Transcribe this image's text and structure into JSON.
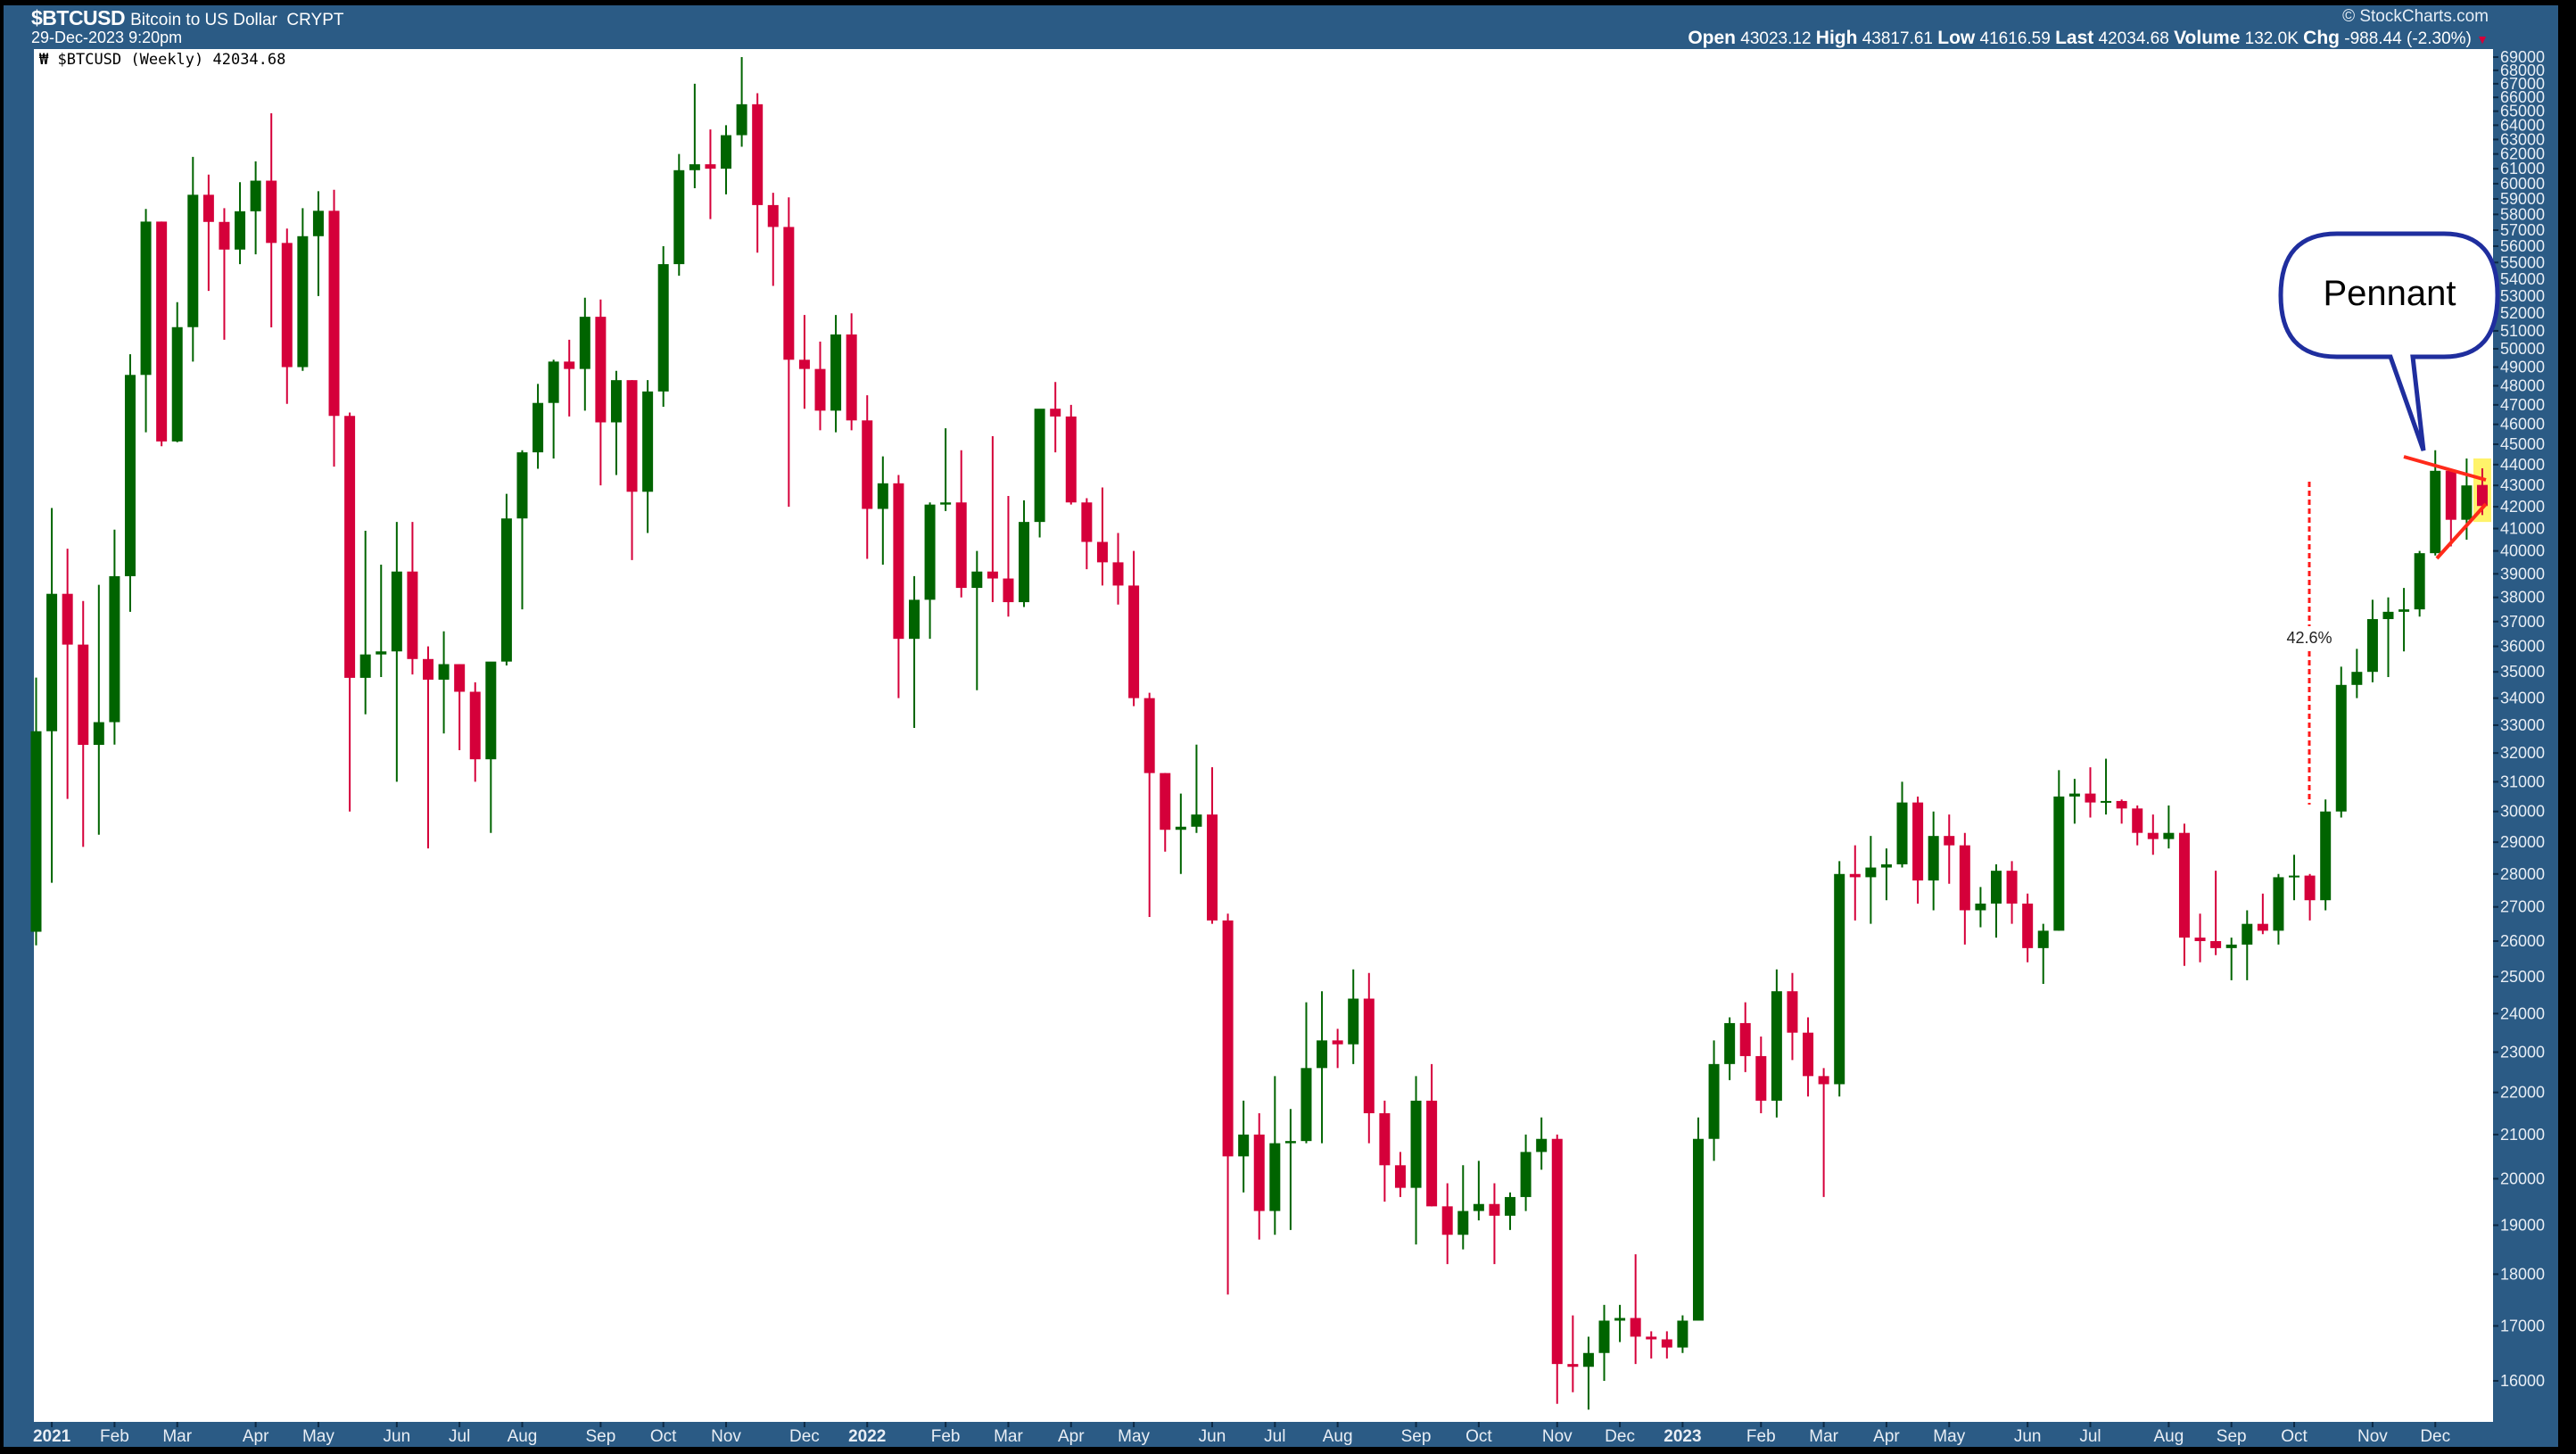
{
  "header": {
    "symbol": "$BTCUSD",
    "description": "Bitcoin to US Dollar",
    "exchange": "CRYPT",
    "datetime": "29-Dec-2023 9:20pm",
    "copyright": "© StockCharts.com",
    "open_label": "Open",
    "open": "43023.12",
    "high_label": "High",
    "high": "43817.61",
    "low_label": "Low",
    "low": "41616.59",
    "last_label": "Last",
    "last": "42034.68",
    "volume_label": "Volume",
    "volume": "132.0K",
    "chg_label": "Chg",
    "chg": "-988.44 (-2.30%)",
    "chg_direction_icon": "down-triangle-icon"
  },
  "legend": {
    "icon": "candlestick-icon",
    "text": "$BTCUSD (Weekly) 42034.68"
  },
  "colors": {
    "up": "#006400",
    "down": "#d5003a",
    "panel": "#2b5b85",
    "callout": "#1f2e9e",
    "trendline": "#ff2a1a",
    "highlight": "#fff36a"
  },
  "annotations": {
    "callout": "Pennant",
    "measure": "42.6%"
  },
  "chart_data": {
    "type": "candlestick",
    "title": "$BTCUSD (Weekly)",
    "y_scale": "log",
    "ylim": [
      16000,
      69000
    ],
    "y_ticks": [
      16000,
      17000,
      18000,
      19000,
      20000,
      21000,
      22000,
      23000,
      24000,
      25000,
      26000,
      27000,
      28000,
      29000,
      30000,
      31000,
      32000,
      33000,
      34000,
      35000,
      36000,
      37000,
      38000,
      39000,
      40000,
      41000,
      42000,
      43000,
      44000,
      45000,
      46000,
      47000,
      48000,
      49000,
      50000,
      51000,
      52000,
      53000,
      54000,
      55000,
      56000,
      57000,
      58000,
      59000,
      60000,
      61000,
      62000,
      63000,
      64000,
      65000,
      66000,
      67000,
      68000,
      69000
    ],
    "y_axis_position": "right",
    "grid": false,
    "x_ticks": [
      {
        "label": "2021",
        "date": "2021-01-04",
        "bold": true
      },
      {
        "label": "Feb",
        "date": "2021-02-01"
      },
      {
        "label": "Mar",
        "date": "2021-03-01"
      },
      {
        "label": "Apr",
        "date": "2021-04-05"
      },
      {
        "label": "May",
        "date": "2021-05-03"
      },
      {
        "label": "Jun",
        "date": "2021-06-07"
      },
      {
        "label": "Jul",
        "date": "2021-07-05"
      },
      {
        "label": "Aug",
        "date": "2021-08-02"
      },
      {
        "label": "Sep",
        "date": "2021-09-06"
      },
      {
        "label": "Oct",
        "date": "2021-10-04"
      },
      {
        "label": "Nov",
        "date": "2021-11-01"
      },
      {
        "label": "Dec",
        "date": "2021-12-06"
      },
      {
        "label": "2022",
        "date": "2022-01-03",
        "bold": true
      },
      {
        "label": "Feb",
        "date": "2022-02-07"
      },
      {
        "label": "Mar",
        "date": "2022-03-07"
      },
      {
        "label": "Apr",
        "date": "2022-04-04"
      },
      {
        "label": "May",
        "date": "2022-05-02"
      },
      {
        "label": "Jun",
        "date": "2022-06-06"
      },
      {
        "label": "Jul",
        "date": "2022-07-04"
      },
      {
        "label": "Aug",
        "date": "2022-08-01"
      },
      {
        "label": "Sep",
        "date": "2022-09-05"
      },
      {
        "label": "Oct",
        "date": "2022-10-03"
      },
      {
        "label": "Nov",
        "date": "2022-11-07"
      },
      {
        "label": "Dec",
        "date": "2022-12-05"
      },
      {
        "label": "2023",
        "date": "2023-01-02",
        "bold": true
      },
      {
        "label": "Feb",
        "date": "2023-02-06"
      },
      {
        "label": "Mar",
        "date": "2023-03-06"
      },
      {
        "label": "Apr",
        "date": "2023-04-03"
      },
      {
        "label": "May",
        "date": "2023-05-01"
      },
      {
        "label": "Jun",
        "date": "2023-06-05"
      },
      {
        "label": "Jul",
        "date": "2023-07-03"
      },
      {
        "label": "Aug",
        "date": "2023-08-07"
      },
      {
        "label": "Sep",
        "date": "2023-09-04"
      },
      {
        "label": "Oct",
        "date": "2023-10-02"
      },
      {
        "label": "Nov",
        "date": "2023-11-06"
      },
      {
        "label": "Dec",
        "date": "2023-12-04"
      }
    ],
    "columns": [
      "week",
      "open",
      "high",
      "low",
      "close"
    ],
    "candles": [
      [
        "2020-12-28",
        26270,
        34780,
        25880,
        32780
      ],
      [
        "2021-01-04",
        32780,
        41940,
        27730,
        38150
      ],
      [
        "2021-01-11",
        38150,
        40100,
        30420,
        36070
      ],
      [
        "2021-01-18",
        36070,
        37850,
        28850,
        32290
      ],
      [
        "2021-01-25",
        32290,
        38530,
        29240,
        33110
      ],
      [
        "2021-02-01",
        33110,
        40950,
        32300,
        38900
      ],
      [
        "2021-02-08",
        38900,
        49700,
        37400,
        48580
      ],
      [
        "2021-02-15",
        48580,
        58350,
        45600,
        57540
      ],
      [
        "2021-02-22",
        57540,
        57540,
        44900,
        45140
      ],
      [
        "2021-03-01",
        45140,
        52640,
        45100,
        51210
      ],
      [
        "2021-03-08",
        51210,
        61800,
        49300,
        59270
      ],
      [
        "2021-03-15",
        59270,
        60600,
        53300,
        57520
      ],
      [
        "2021-03-22",
        57520,
        58400,
        50500,
        55790
      ],
      [
        "2021-03-29",
        55790,
        60100,
        54900,
        58200
      ],
      [
        "2021-04-05",
        58200,
        61500,
        55500,
        60200
      ],
      [
        "2021-04-12",
        60200,
        64850,
        51200,
        56200
      ],
      [
        "2021-04-19",
        56200,
        57100,
        47050,
        49000
      ],
      [
        "2021-04-26",
        49000,
        58400,
        48800,
        56620
      ],
      [
        "2021-05-03",
        56620,
        59500,
        53000,
        58230
      ],
      [
        "2021-05-10",
        58230,
        59600,
        43900,
        46430
      ],
      [
        "2021-05-17",
        46430,
        46600,
        30000,
        34770
      ],
      [
        "2021-05-24",
        34770,
        40900,
        33400,
        35680
      ],
      [
        "2021-05-31",
        35680,
        39400,
        34800,
        35800
      ],
      [
        "2021-06-07",
        35800,
        41300,
        31000,
        39100
      ],
      [
        "2021-06-14",
        39100,
        41300,
        34900,
        35500
      ],
      [
        "2021-06-21",
        35500,
        36000,
        28800,
        34700
      ],
      [
        "2021-06-28",
        34700,
        36600,
        32700,
        35300
      ],
      [
        "2021-07-05",
        35300,
        35300,
        32100,
        34240
      ],
      [
        "2021-07-12",
        34240,
        34600,
        31000,
        31780
      ],
      [
        "2021-07-19",
        31780,
        35000,
        29300,
        35400
      ],
      [
        "2021-07-26",
        35400,
        42600,
        35250,
        41460
      ],
      [
        "2021-08-02",
        41460,
        44700,
        37500,
        44600
      ],
      [
        "2021-08-09",
        44600,
        48100,
        43800,
        47100
      ],
      [
        "2021-08-16",
        47100,
        49400,
        44300,
        49300
      ],
      [
        "2021-08-23",
        49300,
        50500,
        46400,
        48900
      ],
      [
        "2021-08-30",
        48900,
        52900,
        46700,
        51800
      ],
      [
        "2021-09-06",
        51800,
        52800,
        43000,
        46100
      ],
      [
        "2021-09-13",
        46100,
        48800,
        43500,
        48300
      ],
      [
        "2021-09-20",
        48300,
        48300,
        39600,
        42700
      ],
      [
        "2021-09-27",
        42700,
        48300,
        40800,
        47700
      ],
      [
        "2021-10-04",
        47700,
        56000,
        46900,
        54900
      ],
      [
        "2021-10-11",
        54900,
        62000,
        54200,
        60900
      ],
      [
        "2021-10-18",
        60900,
        67000,
        59700,
        61300
      ],
      [
        "2021-10-25",
        61300,
        63700,
        57700,
        61000
      ],
      [
        "2021-11-01",
        61000,
        64000,
        59300,
        63300
      ],
      [
        "2021-11-08",
        63300,
        69000,
        62500,
        65500
      ],
      [
        "2021-11-15",
        65500,
        66300,
        55600,
        58600
      ],
      [
        "2021-11-22",
        58600,
        59400,
        53600,
        57200
      ],
      [
        "2021-11-29",
        57200,
        59100,
        42000,
        49400
      ],
      [
        "2021-12-06",
        49400,
        51900,
        46800,
        48900
      ],
      [
        "2021-12-13",
        48900,
        50400,
        45700,
        46700
      ],
      [
        "2021-12-20",
        46700,
        51900,
        45600,
        50800
      ],
      [
        "2021-12-27",
        50800,
        52000,
        45700,
        46200
      ],
      [
        "2022-01-03",
        46200,
        47500,
        39650,
        41900
      ],
      [
        "2022-01-10",
        41900,
        44400,
        39400,
        43100
      ],
      [
        "2022-01-17",
        43100,
        43500,
        34000,
        36300
      ],
      [
        "2022-01-24",
        36300,
        38900,
        32900,
        37900
      ],
      [
        "2022-01-31",
        37900,
        42200,
        36300,
        42100
      ],
      [
        "2022-02-07",
        42100,
        45800,
        41800,
        42200
      ],
      [
        "2022-02-14",
        42200,
        44700,
        38000,
        38400
      ],
      [
        "2022-02-21",
        38400,
        40000,
        34300,
        39100
      ],
      [
        "2022-02-28",
        39100,
        45400,
        37800,
        38800
      ],
      [
        "2022-03-07",
        38800,
        42500,
        37200,
        37800
      ],
      [
        "2022-03-14",
        37800,
        42300,
        37600,
        41300
      ],
      [
        "2022-03-21",
        41300,
        46500,
        40600,
        46800
      ],
      [
        "2022-03-28",
        46800,
        48200,
        44600,
        46400
      ],
      [
        "2022-04-04",
        46400,
        47000,
        42100,
        42200
      ],
      [
        "2022-04-11",
        42200,
        42400,
        39200,
        40400
      ],
      [
        "2022-04-18",
        40400,
        42900,
        38500,
        39500
      ],
      [
        "2022-04-25",
        39500,
        40800,
        37700,
        38500
      ],
      [
        "2022-05-02",
        38500,
        40000,
        33700,
        34000
      ],
      [
        "2022-05-09",
        34000,
        34200,
        26700,
        31300
      ],
      [
        "2022-05-16",
        31300,
        31300,
        28700,
        29400
      ],
      [
        "2022-05-23",
        29400,
        30600,
        28000,
        29500
      ],
      [
        "2022-05-30",
        29500,
        32300,
        29300,
        29900
      ],
      [
        "2022-06-06",
        29900,
        31500,
        26500,
        26600
      ],
      [
        "2022-06-13",
        26600,
        26800,
        17600,
        20500
      ],
      [
        "2022-06-20",
        20500,
        21800,
        19700,
        21000
      ],
      [
        "2022-06-27",
        21000,
        21500,
        18700,
        19300
      ],
      [
        "2022-07-04",
        19300,
        22400,
        18800,
        20800
      ],
      [
        "2022-07-11",
        20800,
        21600,
        18900,
        20850
      ],
      [
        "2022-07-18",
        20850,
        24300,
        20800,
        22600
      ],
      [
        "2022-07-25",
        22600,
        24600,
        20800,
        23300
      ],
      [
        "2022-08-01",
        23300,
        23600,
        22600,
        23200
      ],
      [
        "2022-08-08",
        23200,
        25200,
        22700,
        24400
      ],
      [
        "2022-08-15",
        24400,
        25100,
        20800,
        21500
      ],
      [
        "2022-08-22",
        21500,
        21800,
        19500,
        20300
      ],
      [
        "2022-08-29",
        20300,
        20600,
        19600,
        19800
      ],
      [
        "2022-09-05",
        19800,
        22400,
        18600,
        21800
      ],
      [
        "2022-09-12",
        21800,
        22700,
        19400,
        19400
      ],
      [
        "2022-09-19",
        19400,
        19900,
        18200,
        18800
      ],
      [
        "2022-09-26",
        18800,
        20300,
        18500,
        19300
      ],
      [
        "2022-10-03",
        19300,
        20400,
        19100,
        19450
      ],
      [
        "2022-10-10",
        19450,
        19900,
        18200,
        19200
      ],
      [
        "2022-10-17",
        19200,
        19700,
        18900,
        19600
      ],
      [
        "2022-10-24",
        19600,
        21000,
        19300,
        20600
      ],
      [
        "2022-10-31",
        20600,
        21400,
        20200,
        20900
      ],
      [
        "2022-11-07",
        20900,
        21000,
        15600,
        16300
      ],
      [
        "2022-11-14",
        16300,
        17200,
        15800,
        16250
      ],
      [
        "2022-11-21",
        16250,
        16800,
        15500,
        16500
      ],
      [
        "2022-11-28",
        16500,
        17400,
        16000,
        17100
      ],
      [
        "2022-12-05",
        17100,
        17400,
        16700,
        17150
      ],
      [
        "2022-12-12",
        17150,
        18400,
        16300,
        16800
      ],
      [
        "2022-12-19",
        16800,
        16900,
        16400,
        16750
      ],
      [
        "2022-12-26",
        16750,
        16900,
        16400,
        16600
      ],
      [
        "2023-01-02",
        16600,
        17200,
        16500,
        17100
      ],
      [
        "2023-01-09",
        17100,
        21400,
        17100,
        20900
      ],
      [
        "2023-01-16",
        20900,
        23300,
        20400,
        22700
      ],
      [
        "2023-01-23",
        22700,
        23900,
        22300,
        23750
      ],
      [
        "2023-01-30",
        23750,
        24300,
        22500,
        22900
      ],
      [
        "2023-02-06",
        22900,
        23400,
        21500,
        21800
      ],
      [
        "2023-02-13",
        21800,
        25200,
        21400,
        24600
      ],
      [
        "2023-02-20",
        24600,
        25100,
        22800,
        23500
      ],
      [
        "2023-02-27",
        23500,
        23900,
        21900,
        22400
      ],
      [
        "2023-03-06",
        22400,
        22600,
        19600,
        22200
      ],
      [
        "2023-03-13",
        22200,
        28400,
        21900,
        28000
      ],
      [
        "2023-03-20",
        28000,
        28900,
        26600,
        27900
      ],
      [
        "2023-03-27",
        27900,
        29200,
        26500,
        28200
      ],
      [
        "2023-04-03",
        28200,
        28800,
        27200,
        28300
      ],
      [
        "2023-04-10",
        28300,
        31000,
        28200,
        30300
      ],
      [
        "2023-04-17",
        30300,
        30500,
        27100,
        27800
      ],
      [
        "2023-04-24",
        27800,
        30000,
        26900,
        29200
      ],
      [
        "2023-05-01",
        29200,
        29900,
        27700,
        28900
      ],
      [
        "2023-05-08",
        28900,
        29300,
        25900,
        26900
      ],
      [
        "2023-05-15",
        26900,
        27600,
        26400,
        27100
      ],
      [
        "2023-05-22",
        27100,
        28300,
        26100,
        28100
      ],
      [
        "2023-05-29",
        28100,
        28400,
        26500,
        27100
      ],
      [
        "2023-06-05",
        27100,
        27400,
        25400,
        25800
      ],
      [
        "2023-06-12",
        25800,
        26500,
        24800,
        26300
      ],
      [
        "2023-06-19",
        26300,
        31400,
        26300,
        30500
      ],
      [
        "2023-06-26",
        30500,
        31100,
        29600,
        30600
      ],
      [
        "2023-07-03",
        30600,
        31500,
        29800,
        30300
      ],
      [
        "2023-07-10",
        30300,
        31800,
        29900,
        30350
      ],
      [
        "2023-07-17",
        30350,
        30400,
        29600,
        30100
      ],
      [
        "2023-07-24",
        30100,
        30200,
        28900,
        29300
      ],
      [
        "2023-07-31",
        29300,
        29900,
        28600,
        29100
      ],
      [
        "2023-08-07",
        29100,
        30200,
        28800,
        29300
      ],
      [
        "2023-08-14",
        29300,
        29600,
        25300,
        26100
      ],
      [
        "2023-08-21",
        26100,
        26800,
        25400,
        26000
      ],
      [
        "2023-08-28",
        26000,
        28100,
        25600,
        25800
      ],
      [
        "2023-09-04",
        25800,
        26100,
        24900,
        25900
      ],
      [
        "2023-09-11",
        25900,
        26900,
        24900,
        26500
      ],
      [
        "2023-09-18",
        26500,
        27400,
        26200,
        26300
      ],
      [
        "2023-09-25",
        26300,
        28000,
        25900,
        27900
      ],
      [
        "2023-10-02",
        27900,
        28600,
        27200,
        27950
      ],
      [
        "2023-10-09",
        27950,
        28000,
        26600,
        27200
      ],
      [
        "2023-10-16",
        27200,
        30400,
        26900,
        30000
      ],
      [
        "2023-10-23",
        30000,
        35200,
        29800,
        34500
      ],
      [
        "2023-10-30",
        34500,
        35900,
        34000,
        35000
      ],
      [
        "2023-11-06",
        35000,
        37900,
        34600,
        37100
      ],
      [
        "2023-11-13",
        37100,
        38000,
        34800,
        37400
      ],
      [
        "2023-11-20",
        37400,
        38400,
        35800,
        37500
      ],
      [
        "2023-11-27",
        37500,
        40000,
        37200,
        39900
      ],
      [
        "2023-12-04",
        39900,
        44700,
        39800,
        43700
      ],
      [
        "2023-12-11",
        43700,
        43700,
        40200,
        41400
      ],
      [
        "2023-12-18",
        41400,
        44300,
        40500,
        43000
      ],
      [
        "2023-12-25",
        43023.12,
        43817.61,
        41616.59,
        42034.68
      ]
    ]
  }
}
